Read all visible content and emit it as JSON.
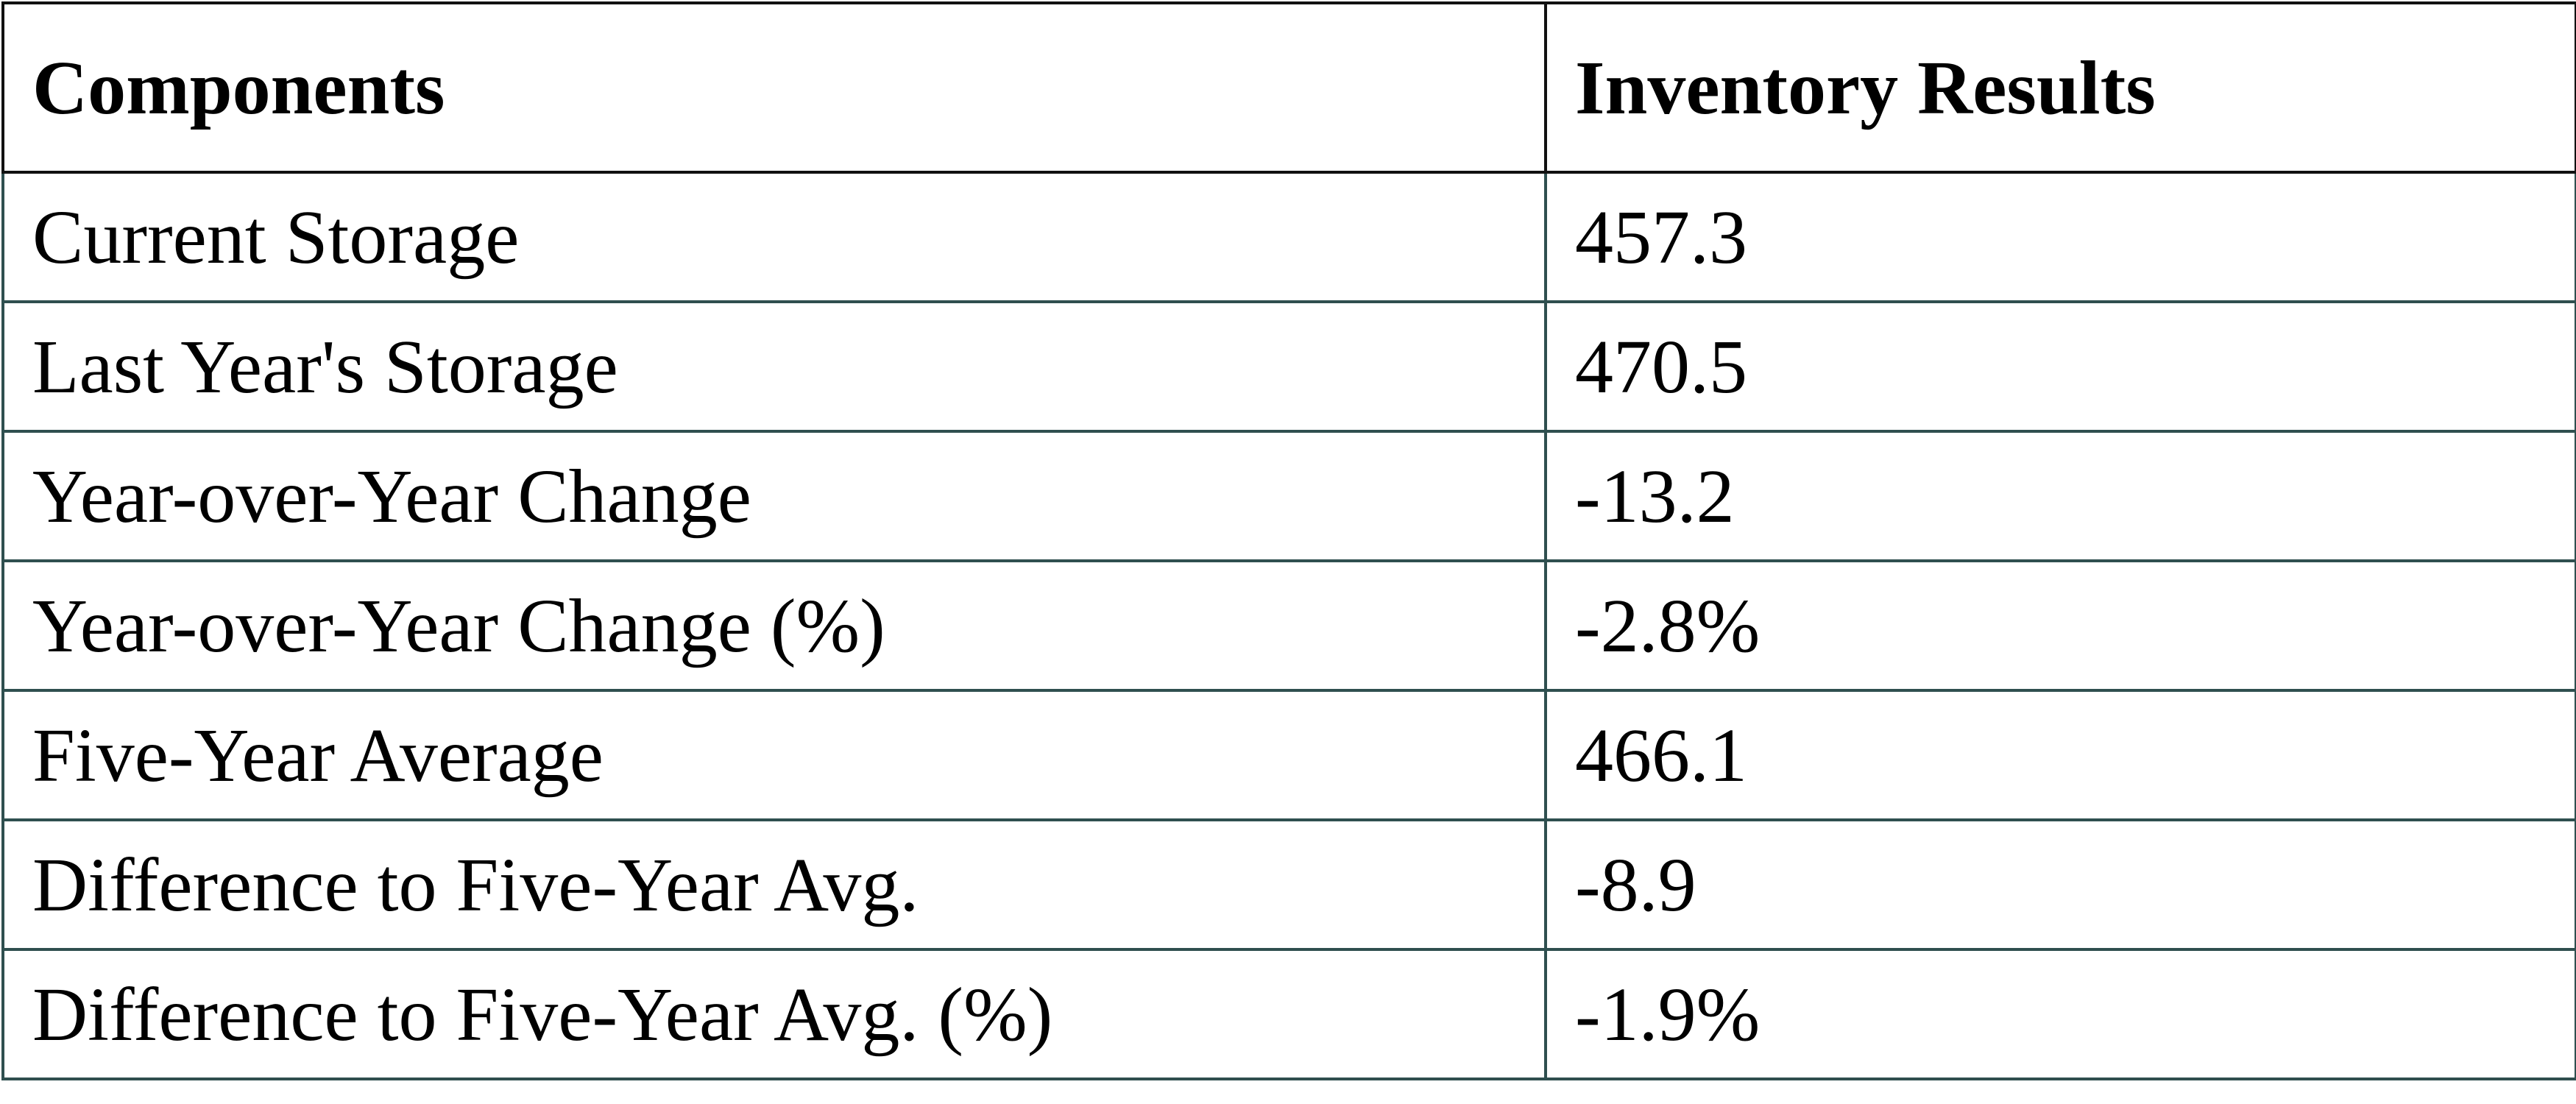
{
  "table": {
    "header": [
      "Components",
      "Inventory Results"
    ],
    "rows": [
      [
        "Current Storage",
        "457.3"
      ],
      [
        "Last Year's Storage",
        "470.5"
      ],
      [
        "Year-over-Year Change",
        "-13.2"
      ],
      [
        "Year-over-Year Change (%)",
        "-2.8%"
      ],
      [
        "Five-Year Average",
        "466.1"
      ],
      [
        "Difference to Five-Year Avg.",
        "-8.9"
      ],
      [
        "Difference to Five-Year Avg. (%)",
        "-1.9%"
      ]
    ]
  }
}
